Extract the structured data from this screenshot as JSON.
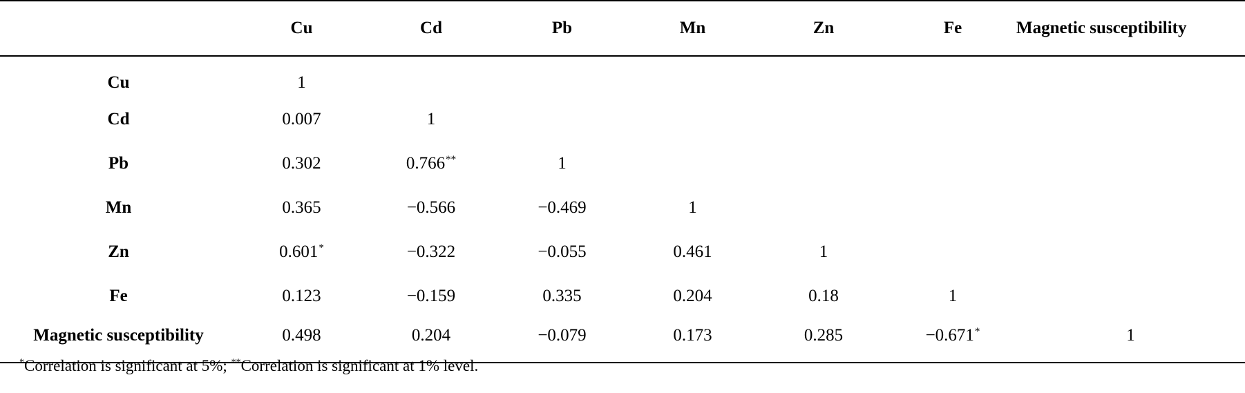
{
  "chart_data": {
    "type": "table",
    "columns": [
      "Cu",
      "Cd",
      "Pb",
      "Mn",
      "Zn",
      "Fe",
      "Magnetic susceptibility"
    ],
    "rows": [
      {
        "label": "Cu",
        "values": [
          {
            "v": "1",
            "sig": ""
          },
          {
            "v": "",
            "sig": ""
          },
          {
            "v": "",
            "sig": ""
          },
          {
            "v": "",
            "sig": ""
          },
          {
            "v": "",
            "sig": ""
          },
          {
            "v": "",
            "sig": ""
          },
          {
            "v": "",
            "sig": ""
          }
        ]
      },
      {
        "label": "Cd",
        "values": [
          {
            "v": "0.007",
            "sig": ""
          },
          {
            "v": "1",
            "sig": ""
          },
          {
            "v": "",
            "sig": ""
          },
          {
            "v": "",
            "sig": ""
          },
          {
            "v": "",
            "sig": ""
          },
          {
            "v": "",
            "sig": ""
          },
          {
            "v": "",
            "sig": ""
          }
        ]
      },
      {
        "label": "Pb",
        "values": [
          {
            "v": "0.302",
            "sig": ""
          },
          {
            "v": "0.766",
            "sig": "**"
          },
          {
            "v": "1",
            "sig": ""
          },
          {
            "v": "",
            "sig": ""
          },
          {
            "v": "",
            "sig": ""
          },
          {
            "v": "",
            "sig": ""
          },
          {
            "v": "",
            "sig": ""
          }
        ]
      },
      {
        "label": "Mn",
        "values": [
          {
            "v": "0.365",
            "sig": ""
          },
          {
            "v": "−0.566",
            "sig": ""
          },
          {
            "v": "−0.469",
            "sig": ""
          },
          {
            "v": "1",
            "sig": ""
          },
          {
            "v": "",
            "sig": ""
          },
          {
            "v": "",
            "sig": ""
          },
          {
            "v": "",
            "sig": ""
          }
        ]
      },
      {
        "label": "Zn",
        "values": [
          {
            "v": "0.601",
            "sig": "*"
          },
          {
            "v": "−0.322",
            "sig": ""
          },
          {
            "v": "−0.055",
            "sig": ""
          },
          {
            "v": "0.461",
            "sig": ""
          },
          {
            "v": "1",
            "sig": ""
          },
          {
            "v": "",
            "sig": ""
          },
          {
            "v": "",
            "sig": ""
          }
        ]
      },
      {
        "label": "Fe",
        "values": [
          {
            "v": "0.123",
            "sig": ""
          },
          {
            "v": "−0.159",
            "sig": ""
          },
          {
            "v": "0.335",
            "sig": ""
          },
          {
            "v": "0.204",
            "sig": ""
          },
          {
            "v": "0.18",
            "sig": ""
          },
          {
            "v": "1",
            "sig": ""
          },
          {
            "v": "",
            "sig": ""
          }
        ]
      },
      {
        "label": "Magnetic susceptibility",
        "values": [
          {
            "v": "0.498",
            "sig": ""
          },
          {
            "v": "0.204",
            "sig": ""
          },
          {
            "v": "−0.079",
            "sig": ""
          },
          {
            "v": "0.173",
            "sig": ""
          },
          {
            "v": "0.285",
            "sig": ""
          },
          {
            "v": "−0.671",
            "sig": "*"
          },
          {
            "v": "1",
            "sig": ""
          }
        ]
      }
    ]
  },
  "footnote": {
    "mark1": "*",
    "text1": "Correlation is significant at 5%; ",
    "mark2": "**",
    "text2": "Correlation is significant at 1% level."
  }
}
